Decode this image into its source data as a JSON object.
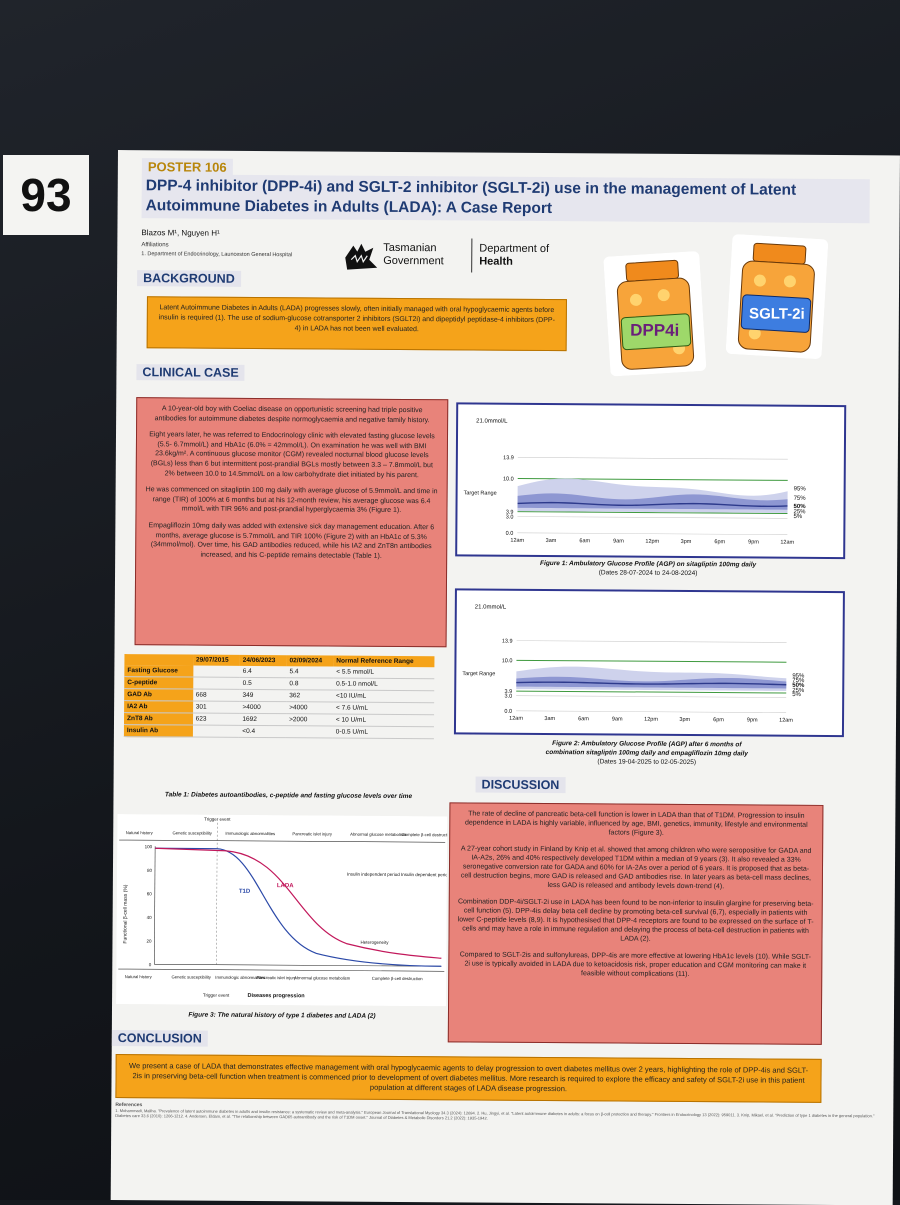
{
  "card_number": "93",
  "poster": {
    "tag": "POSTER 106",
    "title": "DPP-4 inhibitor (DPP-4i) and SGLT-2 inhibitor (SGLT-2i) use in the management of Latent Autoimmune Diabetes in Adults (LADA): A Case Report",
    "authors": "Blazos M¹, Nguyen H¹",
    "affiliations_heading": "Affiliations",
    "affiliation": "1. Department of Endocrinology, Launceston General Hospital",
    "logo": {
      "org1_line1": "Tasmanian",
      "org1_line2": "Government",
      "org2_line1": "Department of",
      "org2_line2": "Health"
    },
    "jars": {
      "left": "DPP4i",
      "right": "SGLT-2i",
      "colors": {
        "orange": "#f08a1c",
        "green_label": "#9ed86a",
        "blue_label": "#3d7de0"
      }
    }
  },
  "background": {
    "heading": "BACKGROUND",
    "text": "Latent Autoimmune Diabetes in Adults (LADA) progresses slowly, often initially managed with oral hypoglycaemic agents before insulin is required (1). The use of sodium-glucose cotransporter 2 inhibitors (SGLT2i) and dipeptidyl peptidase-4 inhibitors (DPP-4) in LADA has not been well evaluated."
  },
  "clinical": {
    "heading": "CLINICAL CASE",
    "p1": "A 10-year-old boy with Coeliac disease on opportunistic screening had triple positive antibodies for autoimmune diabetes despite normoglycaemia and negative family history.",
    "p2": "Eight years later, he was referred to Endocrinology clinic with elevated fasting glucose levels (5.5- 6.7mmol/L) and HbA1c (6.0% = 42mmol/L). On examination he was well with BMI 23.6kg/m². A continuous glucose monitor (CGM) revealed nocturnal blood glucose levels (BGLs) less than 6 but intermittent post-prandial BGLs mostly between 3.3 – 7.8mmol/L but 2% between 10.0 to 14.5mmol/L on a low carbohydrate diet initiated by his parent.",
    "p3": "He was commenced on sitagliptin 100 mg daily with average glucose of 5.9mmol/L and time in range (TIR) of 100% at 6 months but at his 12-month review, his average glucose was 6.4 mmol/L with TIR 96% and post-prandial hyperglycaemia 3% (Figure 1).",
    "p4": "Empagliflozin 10mg daily was added with extensive sick day management education. After 6 months, average glucose is 5.7mmol/L and TIR 100% (Figure 2) with an HbA1c of 5.3% (34mmol/mol). Over time, his GAD antibodies reduced, while his IA2 and ZnT8n antibodies increased, and his C-peptide remains detectable (Table 1)."
  },
  "table1": {
    "headers": [
      "",
      "29/07/2015",
      "24/06/2023",
      "02/09/2024",
      "Normal Reference Range"
    ],
    "rows": [
      [
        "Fasting Glucose",
        "",
        "6.4",
        "5.4",
        "< 5.5  mmol/L"
      ],
      [
        "C-peptide",
        "",
        "0.5",
        "0.8",
        "0.5-1.0 nmol/L"
      ],
      [
        "GAD Ab",
        "668",
        "349",
        "362",
        "<10 IU/mL"
      ],
      [
        "IA2 Ab",
        "301",
        ">4000",
        ">4000",
        "< 7.6 U/mL"
      ],
      [
        "ZnT8 Ab",
        "623",
        "1692",
        ">2000",
        "< 10 U/mL"
      ],
      [
        "Insulin Ab",
        "",
        "<0.4",
        "",
        "0-0.5 U/mL"
      ]
    ],
    "caption": "Table 1: Diabetes autoantibodies, c-peptide and fasting glucose levels over time"
  },
  "fig1": {
    "caption_line1": "Figure 1: Ambulatory Glucose Profile (AGP) on sitagliptin 100mg daily",
    "caption_line2": "(Dates 28-07-2024 to 24-08-2024)"
  },
  "fig2": {
    "caption_line1": "Figure 2: Ambulatory Glucose Profile (AGP) after 6 months of",
    "caption_line2": "combination sitagliptin 100mg daily and empagliflozin 10mg daily",
    "caption_line3": "(Dates 19-04-2025 to 02-05-2025)"
  },
  "agp": {
    "ymax_label": "21.0mmol/L",
    "ymax2_label": "21.0mmol/L",
    "yticks": [
      "13.9",
      "10.0",
      "3.9",
      "3.0",
      "0.0"
    ],
    "target_label": "Target Range",
    "xticks": [
      "12am",
      "3am",
      "6am",
      "9am",
      "12pm",
      "3pm",
      "6pm",
      "9pm",
      "12am"
    ],
    "pct": [
      "95%",
      "75%",
      "50%",
      "25%",
      "5%"
    ],
    "colors": {
      "band_outer": "#c9cdea",
      "band_inner": "#8790cf",
      "median": "#2d3a8c",
      "target_lines": "#3f9a3f",
      "frame": "#2f3690"
    }
  },
  "fig3": {
    "top_labels": [
      "Natural history",
      "Genetic susceptibility",
      "Immunologic abnormalities",
      "Pancreatic islet injury",
      "Abnormal glucose metabolism",
      "Complete β-cell destruction"
    ],
    "trigger": "Trigger event",
    "ylabel": "Functional β-cell mass (%)",
    "yticks": [
      "100",
      "80",
      "60",
      "40",
      "20",
      "0"
    ],
    "curve_labels": [
      "T1D",
      "LADA"
    ],
    "period_labels": [
      "Insulin independent period",
      "Insulin dependent period"
    ],
    "heterogeneity": "Heterogeneity",
    "bottom_labels": [
      "Natural history",
      "Genetic susceptibility",
      "Immunologic abnormalities",
      "Pancreatic islet injury",
      "Abnormal glucose metabolism",
      "Complete β-cell destruction"
    ],
    "bottom_trigger": "Trigger event",
    "progression": "Diseases progression",
    "caption": "Figure 3: The natural history of type 1 diabetes and LADA (2)",
    "colors": {
      "t1d": "#2b49a8",
      "lada": "#c2185b"
    }
  },
  "discussion": {
    "heading": "DISCUSSION",
    "p1": "The rate of decline of pancreatic beta-cell function is lower in LADA than that of T1DM. Progression to insulin dependence in LADA is highly variable, influenced by age, BMI, genetics, immunity, lifestyle and environmental factors (Figure 3).",
    "p2": "A 27-year cohort study in Finland by Knip et al. showed that among children who were seropositive for GADA and IA-A2s, 26% and 40% respectively developed T1DM within a median of 9 years (3). It also revealed a 33% seronegative conversion rate for GADA and 60% for IA-2As over a period of 6 years. It is proposed that as beta-cell destruction begins, more GAD is released and GAD antibodies rise. In later years as beta-cell mass declines, less GAD is released and antibody levels down-trend (4).",
    "p3": "Combination DDP-4i/SGLT-2i use in LADA has been found to be non-inferior to insulin glargine for preserving beta-cell function (5). DPP-4is delay beta cell decline by promoting beta-cell survival (6,7), especially in patients with lower C-peptide levels (8,9). It is hypothesised that DPP-4 receptors are found to be expressed on the surface of T-cells and may have a role in immune regulation and delaying the process of beta-cell destruction in patients with LADA (2).",
    "p4": "Compared to SGLT-2is and sulfonylureas, DPP-4is are more effective at lowering HbA1c levels (10). While SGLT-2i use is typically avoided in LADA due to ketoacidosis risk, proper education and CGM monitoring can make it feasible without complications (11)."
  },
  "conclusion": {
    "heading": "CONCLUSION",
    "text": "We present a case of LADA that demonstrates effective management with oral hypoglycaemic agents to delay progression to overt diabetes mellitus over 2 years, highlighting the role of DPP-4is and SGLT-2is in preserving beta-cell function when treatment is commenced prior to development of overt diabetes mellitus. More research is required to explore the efficacy and safety of SGLT-2i use in this patient population at different stages of LADA disease progression."
  },
  "references": {
    "heading": "References",
    "text": "1. Mohammadi, Maliha. \"Prevalence of latent autoimmune diabetes in adults and insulin resistance: a systematic review and meta-analysis.\" European Journal of Translational Myology 34.3 (2024): 12694. 2. Hu, Jingyi, et al. \"Latent autoimmune diabetes in adults: a focus on β-cell protection and therapy.\" Frontiers in Endocrinology 13 (2022): 959011. 3. Knip, Mikael, et al. \"Prediction of type 1 diabetes in the general population.\" Diabetes care 33.6 (2010): 1206-1212. 4. Andersen, Eldam, et al. \"The relationship between GAD65 autoantibody and the risk of T1DM onset.\" Journal of Diabetes & Metabolic Disorders 21.2 (2022): 1935-1942."
  }
}
